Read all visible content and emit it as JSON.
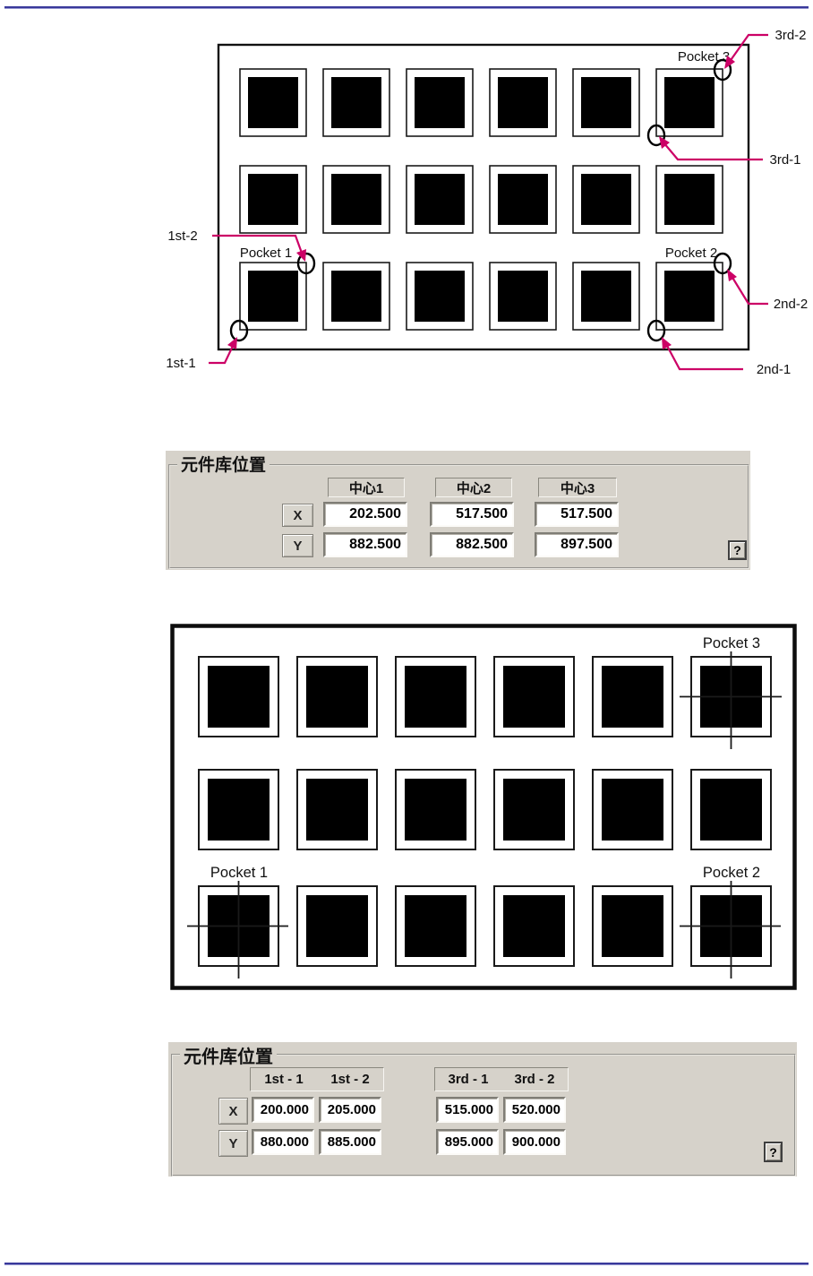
{
  "page": {
    "rule_color": "#39399b",
    "marker_color": "#cc0066"
  },
  "diagram_top": {
    "grid": {
      "rows": 3,
      "cols": 6
    },
    "labels": {
      "pocket1": "Pocket 1",
      "pocket2": "Pocket 2",
      "pocket3": "Pocket 3"
    },
    "annotations": {
      "first1": "1st-1",
      "first2": "1st-2",
      "second1": "2nd-1",
      "second2": "2nd-2",
      "third1": "3rd-1",
      "third2": "3rd-2"
    }
  },
  "panel_centers": {
    "title": "元件库位置",
    "col_headers": [
      "中心1",
      "中心2",
      "中心3"
    ],
    "row_headers": [
      "X",
      "Y"
    ],
    "x_values": [
      "202.500",
      "517.500",
      "517.500"
    ],
    "y_values": [
      "882.500",
      "882.500",
      "897.500"
    ],
    "help_label": "?"
  },
  "diagram_bottom": {
    "grid": {
      "rows": 3,
      "cols": 6
    },
    "labels": {
      "pocket1": "Pocket 1",
      "pocket2": "Pocket 2",
      "pocket3": "Pocket 3"
    }
  },
  "panel_corners": {
    "title": "元件库位置",
    "col_headers": [
      "1st - 1",
      "1st - 2",
      "3rd - 1",
      "3rd - 2"
    ],
    "row_headers": [
      "X",
      "Y"
    ],
    "x_values": [
      "200.000",
      "205.000",
      "515.000",
      "520.000"
    ],
    "y_values": [
      "880.000",
      "885.000",
      "895.000",
      "900.000"
    ],
    "help_label": "?"
  }
}
